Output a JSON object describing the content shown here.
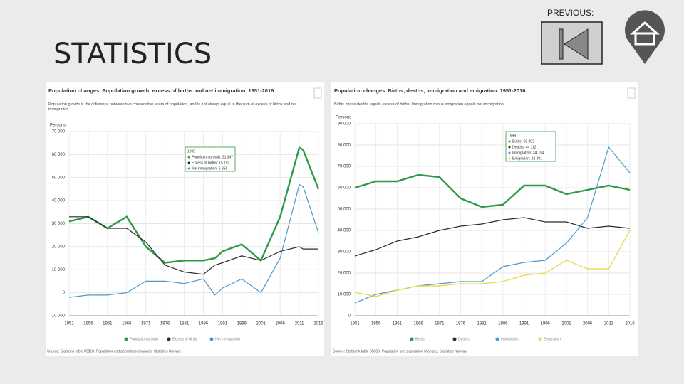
{
  "slide": {
    "title": "STATISTICS",
    "nav_label": "PREVIOUS:"
  },
  "chart_data": [
    {
      "type": "line",
      "title": "Population changes. Population growth, excess of births and net immigration. 1951-2016",
      "subtitle": "Population growth is the difference between two consecutive years of population, and is not always equal to the sum of excess of births and net immigration.",
      "y_label": "Persons",
      "source": "Source: Statbank table 05810: Population and population changes, Statistics Norway.",
      "x": [
        1951,
        1956,
        1961,
        1966,
        1971,
        1976,
        1981,
        1986,
        1989,
        1991,
        1996,
        2001,
        2006,
        2011,
        2012,
        2016
      ],
      "xlim": [
        1951,
        2016
      ],
      "xticks": [
        1951,
        1956,
        1961,
        1966,
        1971,
        1976,
        1981,
        1986,
        1991,
        1996,
        2001,
        2006,
        2011,
        2016
      ],
      "ylim": [
        -10000,
        70000
      ],
      "yticks": [
        {
          "value": -10000,
          "label": "-10 000"
        },
        0,
        {
          "value": 10000,
          "label": "10 000"
        },
        {
          "value": 20000,
          "label": "20 000"
        },
        {
          "value": 30000,
          "label": "30 000"
        },
        {
          "value": 40000,
          "label": "40 000"
        },
        {
          "value": 50000,
          "label": "50 000"
        },
        {
          "value": 60000,
          "label": "60 000"
        },
        {
          "value": 70000,
          "label": "70 000"
        }
      ],
      "grid": true,
      "series": [
        {
          "name": "Population growth",
          "color": "#2e9a47",
          "values": [
            31000,
            33000,
            28000,
            33000,
            20000,
            13000,
            14000,
            14000,
            15000,
            18000,
            21000,
            14000,
            33000,
            63000,
            62000,
            45000
          ]
        },
        {
          "name": "Excess of births",
          "color": "#2b2b2b",
          "values": [
            33000,
            33000,
            28000,
            28000,
            22000,
            12000,
            9000,
            8000,
            12000,
            13000,
            16000,
            14000,
            18000,
            20000,
            19000,
            19000
          ]
        },
        {
          "name": "Net immigration",
          "color": "#4a98c9",
          "values": [
            -2000,
            -1000,
            -1000,
            0,
            5000,
            5000,
            4000,
            6000,
            -1000,
            2000,
            6000,
            0,
            15000,
            47000,
            46000,
            26000
          ]
        }
      ],
      "tooltip": {
        "title": "1995",
        "lines": [
          "Population growth: 21 347",
          "Excess of births: 15 192",
          "Net immigration: 6 356"
        ]
      }
    },
    {
      "type": "line",
      "title": "Population changes. Births, deaths, immigration and emigration. 1951-2016",
      "subtitle": "Births minus deaths equals excess of births. Immigration minus emigration equals net immigration.",
      "y_label": "Persons",
      "source": "Source: Statbank table 05803: Population and population changes, Statistics Norway.",
      "x": [
        1951,
        1956,
        1961,
        1966,
        1971,
        1976,
        1981,
        1986,
        1991,
        1996,
        2001,
        2006,
        2011,
        2016
      ],
      "xlim": [
        1951,
        2016
      ],
      "xticks": [
        1951,
        1956,
        1961,
        1966,
        1971,
        1976,
        1981,
        1986,
        1991,
        1996,
        2001,
        2006,
        2011,
        2016
      ],
      "ylim": [
        0,
        90000
      ],
      "yticks": [
        0,
        {
          "value": 10000,
          "label": "10 000"
        },
        {
          "value": 20000,
          "label": "20 000"
        },
        {
          "value": 30000,
          "label": "30 000"
        },
        {
          "value": 40000,
          "label": "40 000"
        },
        {
          "value": 50000,
          "label": "50 000"
        },
        {
          "value": 60000,
          "label": "60 000"
        },
        {
          "value": 70000,
          "label": "70 000"
        },
        {
          "value": 80000,
          "label": "80 000"
        },
        {
          "value": 90000,
          "label": "90 000"
        }
      ],
      "grid": true,
      "series": [
        {
          "name": "Births",
          "color": "#2e9a47",
          "values": [
            60000,
            63000,
            63000,
            66000,
            65000,
            55000,
            51000,
            52000,
            61000,
            61000,
            57000,
            59000,
            61000,
            59000
          ]
        },
        {
          "name": "Deaths",
          "color": "#2b2b2b",
          "values": [
            28000,
            31000,
            35000,
            37000,
            40000,
            42000,
            43000,
            45000,
            46000,
            44000,
            44000,
            41000,
            42000,
            41000
          ]
        },
        {
          "name": "Immigration",
          "color": "#4a98c9",
          "values": [
            6000,
            10000,
            12000,
            14000,
            15000,
            16000,
            16000,
            23000,
            25000,
            26000,
            34000,
            46000,
            79000,
            67000
          ]
        },
        {
          "name": "Emigration",
          "color": "#e8d83a",
          "values": [
            11000,
            9000,
            12000,
            14000,
            14000,
            15000,
            15000,
            16000,
            19000,
            20000,
            26000,
            22000,
            22000,
            40000
          ]
        }
      ],
      "tooltip": {
        "title": "1999",
        "lines": [
          "Births: 59 302",
          "Deaths: 44 112",
          "Immigration: 34 704",
          "Emigration: 22 881"
        ]
      }
    }
  ]
}
